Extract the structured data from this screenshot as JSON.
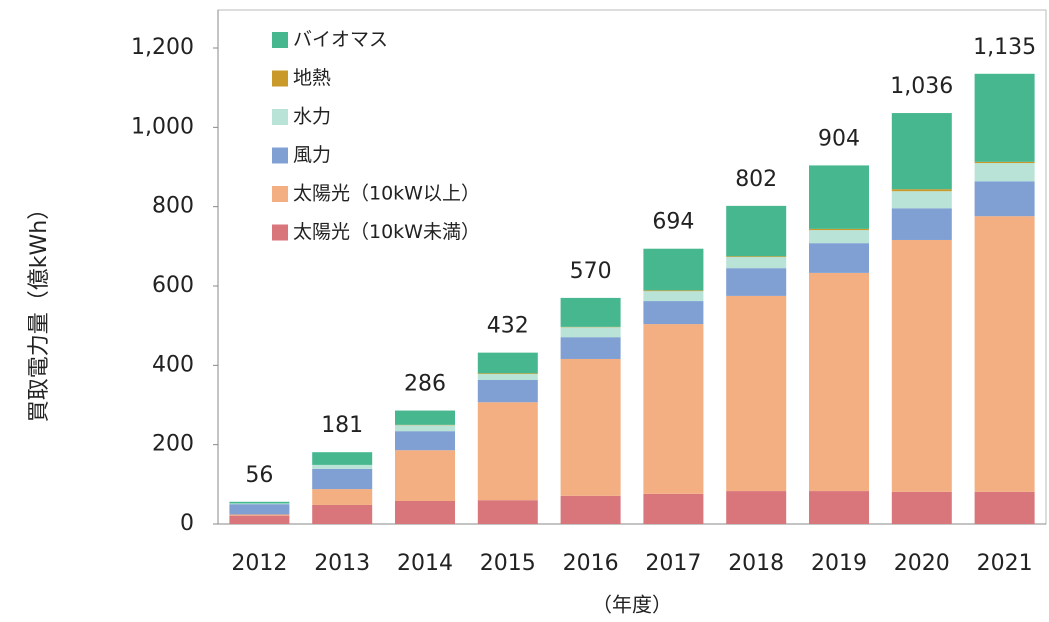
{
  "chart_data": {
    "type": "stacked-bar",
    "ylabel": "買取電力量（億kWh）",
    "xlabel": "（年度）",
    "categories": [
      "2012",
      "2013",
      "2014",
      "2015",
      "2016",
      "2017",
      "2018",
      "2019",
      "2020",
      "2021"
    ],
    "series": [
      {
        "name": "太陽光（10kW未満）",
        "color": "#d9767c",
        "values": [
          21,
          48,
          58,
          60,
          71,
          76,
          83,
          83,
          81,
          81
        ]
      },
      {
        "name": "太陽光（10kW以上）",
        "color": "#f3ae82",
        "values": [
          3,
          40,
          128,
          247,
          345,
          428,
          492,
          550,
          635,
          695
        ]
      },
      {
        "name": "風力",
        "color": "#80a0d3",
        "values": [
          26,
          51,
          48,
          56,
          55,
          58,
          70,
          75,
          80,
          88
        ]
      },
      {
        "name": "水力",
        "color": "#b8e3d6",
        "values": [
          2,
          10,
          15,
          15,
          25,
          25,
          28,
          33,
          43,
          46
        ]
      },
      {
        "name": "地熱",
        "color": "#c99a2a",
        "values": [
          0,
          0,
          1,
          2,
          1,
          2,
          2,
          3,
          5,
          3
        ]
      },
      {
        "name": "バイオマス",
        "color": "#46b78f",
        "values": [
          4,
          32,
          36,
          52,
          73,
          105,
          127,
          160,
          192,
          222
        ]
      }
    ],
    "totals": [
      56,
      181,
      286,
      432,
      570,
      694,
      802,
      904,
      1036,
      1135
    ],
    "value_labels": [
      "56",
      "181",
      "286",
      "432",
      "570",
      "694",
      "802",
      "904",
      "1,036",
      "1,135"
    ],
    "ylim": [
      0,
      1200
    ],
    "yticks": [
      0,
      200,
      400,
      600,
      800,
      {
        "value": 1000,
        "label": "1,000"
      },
      {
        "value": 1200,
        "label": "1,200"
      }
    ],
    "legend": "upper-left"
  }
}
